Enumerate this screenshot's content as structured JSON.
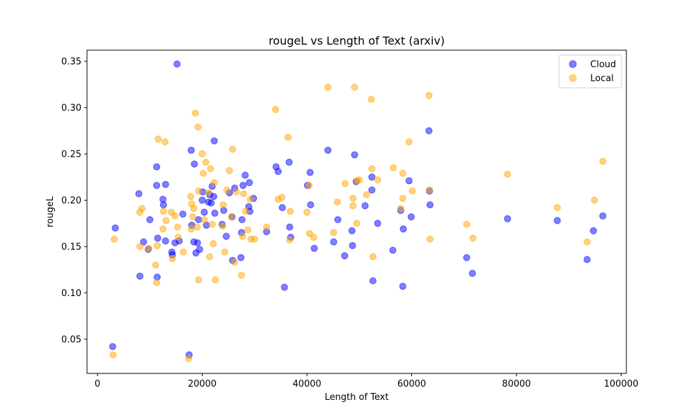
{
  "chart_data": {
    "type": "scatter",
    "title": "rougeL vs Length of Text (arxiv)",
    "xlabel": "Length of Text",
    "ylabel": "rougeL",
    "xlim": [
      -2000,
      101000
    ],
    "ylim": [
      0.013,
      0.362
    ],
    "xticks": [
      0,
      20000,
      40000,
      60000,
      80000,
      100000
    ],
    "yticks": [
      0.05,
      0.1,
      0.15,
      0.2,
      0.25,
      0.3,
      0.35
    ],
    "ytick_labels": [
      "0.05",
      "0.10",
      "0.15",
      "0.20",
      "0.25",
      "0.30",
      "0.35"
    ],
    "grid": false,
    "legend_position": "top-right",
    "series": [
      {
        "name": "Cloud",
        "color": "#0000ff",
        "points": [
          [
            2900,
            0.042
          ],
          [
            3400,
            0.17
          ],
          [
            7900,
            0.207
          ],
          [
            8100,
            0.118
          ],
          [
            8800,
            0.155
          ],
          [
            9700,
            0.147
          ],
          [
            10000,
            0.179
          ],
          [
            11300,
            0.236
          ],
          [
            11300,
            0.216
          ],
          [
            11500,
            0.159
          ],
          [
            11400,
            0.117
          ],
          [
            12500,
            0.201
          ],
          [
            12600,
            0.195
          ],
          [
            13000,
            0.217
          ],
          [
            13000,
            0.156
          ],
          [
            14200,
            0.144
          ],
          [
            14300,
            0.141
          ],
          [
            14800,
            0.154
          ],
          [
            15200,
            0.347
          ],
          [
            15600,
            0.156
          ],
          [
            16300,
            0.185
          ],
          [
            17500,
            0.033
          ],
          [
            17900,
            0.254
          ],
          [
            18000,
            0.173
          ],
          [
            18400,
            0.155
          ],
          [
            18500,
            0.239
          ],
          [
            18800,
            0.143
          ],
          [
            19100,
            0.154
          ],
          [
            19300,
            0.179
          ],
          [
            19500,
            0.147
          ],
          [
            20000,
            0.2
          ],
          [
            20100,
            0.209
          ],
          [
            20400,
            0.187
          ],
          [
            20800,
            0.173
          ],
          [
            21200,
            0.198
          ],
          [
            21400,
            0.206
          ],
          [
            21700,
            0.197
          ],
          [
            21900,
            0.215
          ],
          [
            22200,
            0.204
          ],
          [
            22300,
            0.264
          ],
          [
            22400,
            0.186
          ],
          [
            23800,
            0.174
          ],
          [
            24100,
            0.189
          ],
          [
            24600,
            0.161
          ],
          [
            25200,
            0.208
          ],
          [
            25700,
            0.182
          ],
          [
            25800,
            0.135
          ],
          [
            26200,
            0.213
          ],
          [
            27400,
            0.138
          ],
          [
            27500,
            0.165
          ],
          [
            27600,
            0.179
          ],
          [
            27800,
            0.216
          ],
          [
            28200,
            0.227
          ],
          [
            28900,
            0.193
          ],
          [
            29000,
            0.219
          ],
          [
            29100,
            0.188
          ],
          [
            29800,
            0.202
          ],
          [
            32300,
            0.166
          ],
          [
            34100,
            0.236
          ],
          [
            34500,
            0.231
          ],
          [
            35300,
            0.192
          ],
          [
            35700,
            0.106
          ],
          [
            36600,
            0.241
          ],
          [
            36700,
            0.171
          ],
          [
            36900,
            0.16
          ],
          [
            40100,
            0.216
          ],
          [
            40600,
            0.23
          ],
          [
            40700,
            0.195
          ],
          [
            41400,
            0.148
          ],
          [
            44000,
            0.254
          ],
          [
            45100,
            0.155
          ],
          [
            45900,
            0.179
          ],
          [
            47200,
            0.14
          ],
          [
            48600,
            0.167
          ],
          [
            48700,
            0.151
          ],
          [
            49100,
            0.249
          ],
          [
            49400,
            0.22
          ],
          [
            51100,
            0.194
          ],
          [
            52400,
            0.225
          ],
          [
            52400,
            0.211
          ],
          [
            52600,
            0.113
          ],
          [
            53500,
            0.175
          ],
          [
            56400,
            0.146
          ],
          [
            57900,
            0.189
          ],
          [
            58300,
            0.107
          ],
          [
            58400,
            0.169
          ],
          [
            59500,
            0.221
          ],
          [
            59900,
            0.182
          ],
          [
            63300,
            0.275
          ],
          [
            63400,
            0.21
          ],
          [
            63500,
            0.195
          ],
          [
            70500,
            0.138
          ],
          [
            71600,
            0.121
          ],
          [
            78300,
            0.18
          ],
          [
            87800,
            0.178
          ],
          [
            93500,
            0.136
          ],
          [
            94700,
            0.167
          ],
          [
            96500,
            0.183
          ]
        ]
      },
      {
        "name": "Local",
        "color": "#ffa500",
        "points": [
          [
            3000,
            0.033
          ],
          [
            3200,
            0.158
          ],
          [
            8100,
            0.187
          ],
          [
            8100,
            0.15
          ],
          [
            8500,
            0.191
          ],
          [
            9800,
            0.148
          ],
          [
            11100,
            0.13
          ],
          [
            11300,
            0.111
          ],
          [
            11400,
            0.151
          ],
          [
            11600,
            0.266
          ],
          [
            12500,
            0.169
          ],
          [
            12600,
            0.188
          ],
          [
            12900,
            0.263
          ],
          [
            13100,
            0.178
          ],
          [
            14100,
            0.187
          ],
          [
            14300,
            0.137
          ],
          [
            14800,
            0.183
          ],
          [
            15300,
            0.171
          ],
          [
            15400,
            0.16
          ],
          [
            16400,
            0.144
          ],
          [
            17400,
            0.029
          ],
          [
            17800,
            0.204
          ],
          [
            17900,
            0.169
          ],
          [
            18000,
            0.196
          ],
          [
            18200,
            0.182
          ],
          [
            18400,
            0.191
          ],
          [
            18700,
            0.294
          ],
          [
            19000,
            0.171
          ],
          [
            19200,
            0.279
          ],
          [
            19300,
            0.114
          ],
          [
            19300,
            0.21
          ],
          [
            20000,
            0.25
          ],
          [
            20200,
            0.229
          ],
          [
            20400,
            0.179
          ],
          [
            20700,
            0.241
          ],
          [
            21200,
            0.208
          ],
          [
            21400,
            0.139
          ],
          [
            21600,
            0.234
          ],
          [
            21900,
            0.174
          ],
          [
            22100,
            0.153
          ],
          [
            22300,
            0.219
          ],
          [
            22500,
            0.114
          ],
          [
            23900,
            0.172
          ],
          [
            24000,
            0.195
          ],
          [
            24300,
            0.144
          ],
          [
            24700,
            0.211
          ],
          [
            25200,
            0.232
          ],
          [
            25600,
            0.182
          ],
          [
            25800,
            0.255
          ],
          [
            26200,
            0.133
          ],
          [
            26500,
            0.209
          ],
          [
            27500,
            0.119
          ],
          [
            27700,
            0.161
          ],
          [
            27900,
            0.207
          ],
          [
            28300,
            0.188
          ],
          [
            28700,
            0.168
          ],
          [
            29200,
            0.201
          ],
          [
            29300,
            0.158
          ],
          [
            30000,
            0.158
          ],
          [
            32300,
            0.171
          ],
          [
            34000,
            0.298
          ],
          [
            34500,
            0.201
          ],
          [
            35200,
            0.203
          ],
          [
            36400,
            0.268
          ],
          [
            36700,
            0.157
          ],
          [
            36800,
            0.188
          ],
          [
            40000,
            0.187
          ],
          [
            40400,
            0.216
          ],
          [
            40500,
            0.164
          ],
          [
            41300,
            0.16
          ],
          [
            44000,
            0.322
          ],
          [
            45100,
            0.165
          ],
          [
            45800,
            0.198
          ],
          [
            47300,
            0.218
          ],
          [
            48800,
            0.194
          ],
          [
            48800,
            0.202
          ],
          [
            49100,
            0.322
          ],
          [
            49500,
            0.175
          ],
          [
            49600,
            0.221
          ],
          [
            50000,
            0.222
          ],
          [
            51400,
            0.206
          ],
          [
            52300,
            0.309
          ],
          [
            52400,
            0.234
          ],
          [
            52600,
            0.139
          ],
          [
            53500,
            0.222
          ],
          [
            56500,
            0.235
          ],
          [
            57900,
            0.191
          ],
          [
            58300,
            0.202
          ],
          [
            58300,
            0.229
          ],
          [
            59500,
            0.263
          ],
          [
            60100,
            0.21
          ],
          [
            63300,
            0.313
          ],
          [
            63400,
            0.211
          ],
          [
            63500,
            0.158
          ],
          [
            70500,
            0.174
          ],
          [
            71700,
            0.159
          ],
          [
            78300,
            0.228
          ],
          [
            87800,
            0.192
          ],
          [
            93500,
            0.155
          ],
          [
            94900,
            0.2
          ],
          [
            96500,
            0.242
          ]
        ]
      }
    ]
  }
}
